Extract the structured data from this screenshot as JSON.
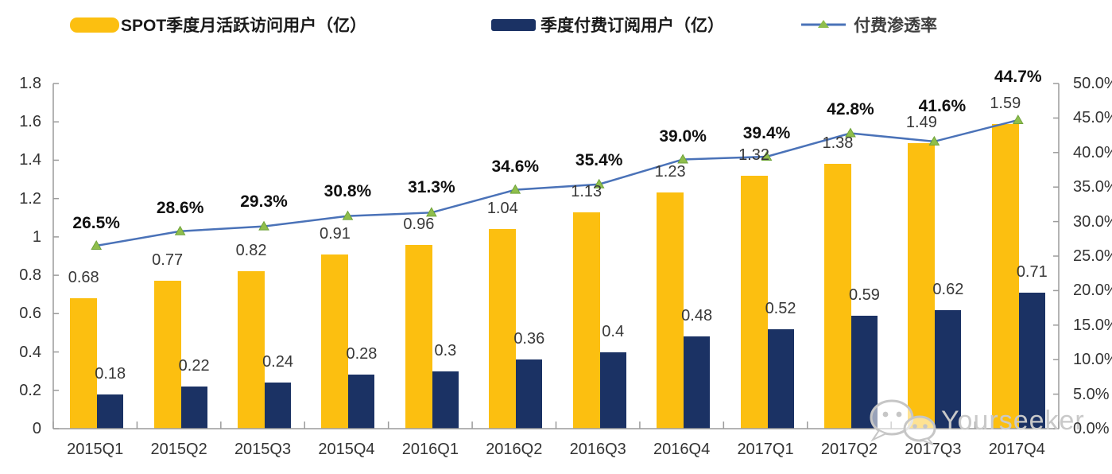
{
  "legend": {
    "mau": "SPOT季度月活跃访问用户（亿）",
    "subs": "季度付费订阅用户（亿）",
    "penetration": "付费渗透率"
  },
  "watermark": {
    "text": "Yourseeker",
    "icon": "wechat-icon"
  },
  "colors": {
    "mau_bar": "#FCBF10",
    "subs_bar": "#1B3264",
    "line": "#4A72B8",
    "marker_fill": "#8FBE4C",
    "marker_stroke": "#6FA33B",
    "axis": "#9B9B9B",
    "value_label": "#383838",
    "pct_label": "#101010",
    "watermark": "#C9C9C9"
  },
  "chart_data": {
    "type": "bar",
    "subtype": "combo-bar-line-dual-axis",
    "categories": [
      "2015Q1",
      "2015Q2",
      "2015Q3",
      "2015Q4",
      "2016Q1",
      "2016Q2",
      "2016Q3",
      "2016Q4",
      "2017Q1",
      "2017Q2",
      "2017Q3",
      "2017Q4"
    ],
    "series": [
      {
        "name": "SPOT季度月活跃访问用户（亿）",
        "type": "bar",
        "axis": "left",
        "color": "#FCBF10",
        "values": [
          0.68,
          0.77,
          0.82,
          0.91,
          0.96,
          1.04,
          1.13,
          1.23,
          1.32,
          1.38,
          1.49,
          1.59
        ],
        "labels": [
          "0.68",
          "0.77",
          "0.82",
          "0.91",
          "0.96",
          "1.04",
          "1.13",
          "1.23",
          "1.32",
          "1.38",
          "1.49",
          "1.59"
        ]
      },
      {
        "name": "季度付费订阅用户（亿）",
        "type": "bar",
        "axis": "left",
        "color": "#1B3264",
        "values": [
          0.18,
          0.22,
          0.24,
          0.28,
          0.3,
          0.36,
          0.4,
          0.48,
          0.52,
          0.59,
          0.62,
          0.71
        ],
        "labels": [
          "0.18",
          "0.22",
          "0.24",
          "0.28",
          "0.3",
          "0.36",
          "0.4",
          "0.48",
          "0.52",
          "0.59",
          "0.62",
          "0.71"
        ]
      },
      {
        "name": "付费渗透率",
        "type": "line",
        "axis": "right",
        "color": "#4A72B8",
        "values": [
          26.5,
          28.6,
          29.3,
          30.8,
          31.3,
          34.6,
          35.4,
          39.0,
          39.4,
          42.8,
          41.6,
          44.7
        ],
        "labels": [
          "26.5%",
          "28.6%",
          "29.3%",
          "30.8%",
          "31.3%",
          "34.6%",
          "35.4%",
          "39.0%",
          "39.4%",
          "42.8%",
          "41.6%",
          "44.7%"
        ]
      }
    ],
    "left_axis": {
      "min": 0,
      "max": 1.8,
      "ticks": [
        "0",
        "0.2",
        "0.4",
        "0.6",
        "0.8",
        "1",
        "1.2",
        "1.4",
        "1.6",
        "1.8"
      ]
    },
    "right_axis": {
      "min": 0,
      "max": 50,
      "ticks": [
        "0.0%",
        "5.0%",
        "10.0%",
        "15.0%",
        "20.0%",
        "25.0%",
        "30.0%",
        "35.0%",
        "40.0%",
        "45.0%",
        "50.0%"
      ]
    },
    "grid": false,
    "legend_position": "top",
    "pct_label_dy": [
      -28,
      -29,
      -31,
      -31,
      -31,
      -29,
      -30,
      -28,
      -29,
      -29,
      -44,
      -54
    ],
    "pct_label_dx": [
      0,
      0,
      0,
      0,
      0,
      0,
      0,
      0,
      0,
      0,
      10,
      0
    ]
  }
}
